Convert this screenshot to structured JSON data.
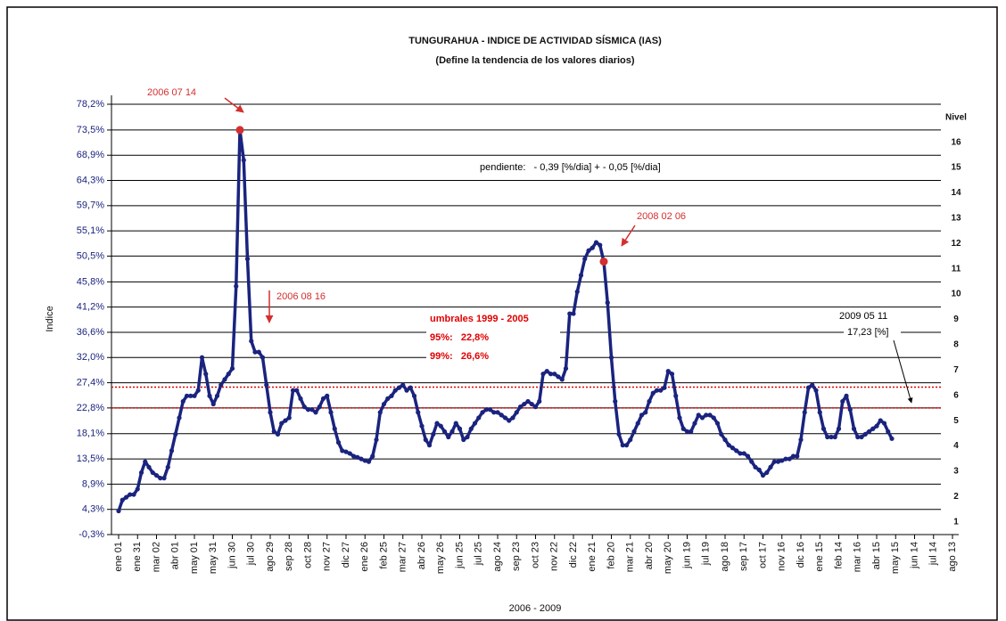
{
  "chart_data": {
    "type": "line",
    "title": "TUNGURAHUA - INDICE DE ACTIVIDAD SÍSMICA (IAS)",
    "subtitle": "(Define la tendencia de los valores diarios)",
    "ylabel": "Indice",
    "xlabel": "2006 - 2009",
    "y2label": "Nivel",
    "ylim": [
      -0.3,
      78.2
    ],
    "yticks": [
      {
        "value": -0.3,
        "label": "-0,3%"
      },
      {
        "value": 4.3,
        "label": "4,3%"
      },
      {
        "value": 8.9,
        "label": "8,9%"
      },
      {
        "value": 13.5,
        "label": "13,5%"
      },
      {
        "value": 18.1,
        "label": "18,1%"
      },
      {
        "value": 22.8,
        "label": "22,8%"
      },
      {
        "value": 27.4,
        "label": "27,4%"
      },
      {
        "value": 32.0,
        "label": "32,0%"
      },
      {
        "value": 36.6,
        "label": "36,6%"
      },
      {
        "value": 41.2,
        "label": "41,2%"
      },
      {
        "value": 45.8,
        "label": "45,8%"
      },
      {
        "value": 50.5,
        "label": "50,5%"
      },
      {
        "value": 55.1,
        "label": "55,1%"
      },
      {
        "value": 59.7,
        "label": "59,7%"
      },
      {
        "value": 64.3,
        "label": "64,3%"
      },
      {
        "value": 68.9,
        "label": "68,9%"
      },
      {
        "value": 73.5,
        "label": "73,5%"
      },
      {
        "value": 78.2,
        "label": "78,2%"
      }
    ],
    "y2lim": [
      0.5,
      17.5
    ],
    "y2ticks": [
      1,
      2,
      3,
      4,
      5,
      6,
      7,
      8,
      9,
      10,
      11,
      12,
      13,
      14,
      15,
      16
    ],
    "grid": true,
    "categories": [
      "ene 01",
      null,
      null,
      null,
      null,
      "ene 31",
      null,
      null,
      null,
      null,
      "mar 02",
      null,
      null,
      null,
      null,
      "abr 01",
      null,
      null,
      null,
      null,
      "may 01",
      null,
      null,
      null,
      null,
      "may 31",
      null,
      null,
      null,
      null,
      "jun 30",
      null,
      null,
      null,
      null,
      "jul 30",
      null,
      null,
      null,
      null,
      "ago 29",
      null,
      null,
      null,
      null,
      "sep 28",
      null,
      null,
      null,
      null,
      "oct 28",
      null,
      null,
      null,
      null,
      "nov 27",
      null,
      null,
      null,
      null,
      "dic 27",
      null,
      null,
      null,
      null,
      "ene 26",
      null,
      null,
      null,
      null,
      "feb 25",
      null,
      null,
      null,
      null,
      "mar 27",
      null,
      null,
      null,
      null,
      "abr 26",
      null,
      null,
      null,
      null,
      "may 26",
      null,
      null,
      null,
      null,
      "jun 25",
      null,
      null,
      null,
      null,
      "jul 25",
      null,
      null,
      null,
      null,
      "ago 24",
      null,
      null,
      null,
      null,
      "sep 23",
      null,
      null,
      null,
      null,
      "oct 23",
      null,
      null,
      null,
      null,
      "nov 22",
      null,
      null,
      null,
      null,
      "dic 22",
      null,
      null,
      null,
      null,
      "ene 21",
      null,
      null,
      null,
      null,
      "feb 20",
      null,
      null,
      null,
      null,
      "mar 21",
      null,
      null,
      null,
      null,
      "abr 20",
      null,
      null,
      null,
      null,
      "may 20",
      null,
      null,
      null,
      null,
      "jun 19",
      null,
      null,
      null,
      null,
      "jul 19",
      null,
      null,
      null,
      null,
      "ago 18",
      null,
      null,
      null,
      null,
      "sep 17",
      null,
      null,
      null,
      null,
      "oct 17",
      null,
      null,
      null,
      null,
      "nov 16",
      null,
      null,
      null,
      null,
      "dic 16",
      null,
      null,
      null,
      null,
      "ene 15",
      null,
      null,
      null,
      null,
      "feb 14",
      null,
      null,
      null,
      null,
      "mar 16",
      null,
      null,
      null,
      null,
      "abr 15",
      null,
      null,
      null,
      null,
      "may 15",
      null,
      null,
      null,
      null,
      "jun 14",
      null,
      null,
      null,
      null,
      "jul 14",
      null,
      null,
      null,
      null,
      "ago 13"
    ],
    "series": [
      {
        "color": "#1a237e",
        "values": [
          4,
          6,
          6.5,
          7,
          7,
          8,
          11,
          13,
          12,
          11,
          10.5,
          10,
          10,
          12,
          15,
          18,
          21,
          24,
          25,
          25,
          25,
          26,
          32,
          29,
          25,
          23.5,
          25,
          27,
          28,
          29,
          30,
          45,
          73.5,
          68,
          50,
          35,
          33,
          33,
          32,
          27,
          22,
          18.5,
          18,
          20,
          20.5,
          21,
          26,
          26,
          24.5,
          23,
          22.5,
          22.5,
          22,
          23,
          24.5,
          25,
          22,
          19,
          16.5,
          15,
          14.8,
          14.5,
          14,
          13.8,
          13.5,
          13.2,
          13,
          14,
          17,
          22,
          23.5,
          24.5,
          25,
          26,
          26.5,
          27,
          26,
          26.5,
          25,
          22,
          19.5,
          17,
          16,
          18,
          20,
          19.5,
          18.5,
          17.5,
          18.5,
          20,
          19,
          17,
          17.5,
          19,
          20,
          21,
          22,
          22.5,
          22.5,
          22,
          22,
          21.5,
          21,
          20.5,
          21,
          22,
          23,
          23.5,
          24,
          23.5,
          23,
          24,
          29,
          29.5,
          29,
          29,
          28.5,
          28,
          30,
          40,
          40,
          44,
          47,
          50,
          51.5,
          52,
          53,
          52.5,
          49.5,
          42,
          32,
          24,
          18,
          16,
          16,
          17,
          18.5,
          20,
          21.5,
          22,
          24,
          25.5,
          26,
          26,
          26.5,
          29.5,
          29,
          25,
          21,
          19,
          18.5,
          18.5,
          20,
          21.5,
          21,
          21.5,
          21.5,
          21,
          20,
          18,
          17,
          16,
          15.5,
          15,
          14.5,
          14.5,
          14,
          13,
          12,
          11.5,
          10.5,
          11,
          12,
          13,
          13,
          13.2,
          13.5,
          13.5,
          14,
          14,
          17,
          22,
          26.5,
          27,
          26,
          22,
          19,
          17.5,
          17.5,
          17.5,
          19,
          24,
          25,
          22.5,
          19,
          17.5,
          17.5,
          18,
          18.5,
          19,
          19.5,
          20.5,
          20,
          18.5,
          17.2,
          null,
          null,
          null,
          null,
          null,
          null,
          null,
          null,
          null,
          null,
          null,
          null,
          null,
          null,
          null,
          null
        ]
      }
    ],
    "thresholds": {
      "title": "umbrales 1999 - 2005",
      "color": "#e00000",
      "lines": [
        {
          "label": "95%:   22,8%",
          "value": 22.8
        },
        {
          "label": "99%:   26,6%",
          "value": 26.6
        }
      ]
    },
    "annotations": [
      "2006 07 14",
      "2006 08 16",
      "2008 02 06",
      "2009 05 11",
      "17,23 [%]",
      "pendiente:   - 0,39 [%/dia] + - 0,05 [%/dia]"
    ]
  }
}
